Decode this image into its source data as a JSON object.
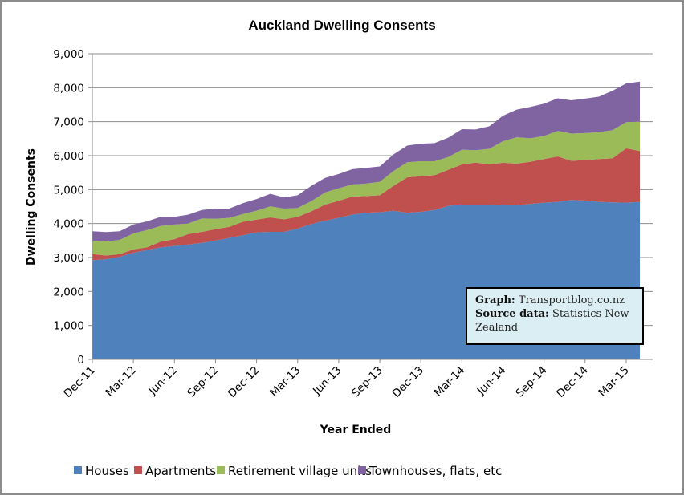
{
  "chart_data": {
    "type": "area",
    "stacked": true,
    "title": "Auckland Dwelling Consents",
    "xlabel": "Year Ended",
    "ylabel": "Dwelling Consents",
    "ylim": [
      0,
      9000
    ],
    "yticks": [
      0,
      1000,
      2000,
      3000,
      4000,
      5000,
      6000,
      7000,
      8000,
      9000
    ],
    "ytick_labels": [
      "0",
      "1,000",
      "2,000",
      "3,000",
      "4,000",
      "5,000",
      "6,000",
      "7,000",
      "8,000",
      "9,000"
    ],
    "xtick_labels": [
      "Dec-11",
      "Mar-12",
      "Jun-12",
      "Sep-12",
      "Dec-12",
      "Mar-13",
      "Jun-13",
      "Sep-13",
      "Dec-13",
      "Mar-14",
      "Jun-14",
      "Sep-14",
      "Dec-14",
      "Mar-15"
    ],
    "x": [
      "Dec-11",
      "Jan-12",
      "Feb-12",
      "Mar-12",
      "Apr-12",
      "May-12",
      "Jun-12",
      "Jul-12",
      "Aug-12",
      "Sep-12",
      "Oct-12",
      "Nov-12",
      "Dec-12",
      "Jan-13",
      "Feb-13",
      "Mar-13",
      "Apr-13",
      "May-13",
      "Jun-13",
      "Jul-13",
      "Aug-13",
      "Sep-13",
      "Oct-13",
      "Nov-13",
      "Dec-13",
      "Jan-14",
      "Feb-14",
      "Mar-14",
      "Apr-14",
      "May-14",
      "Jun-14",
      "Jul-14",
      "Aug-14",
      "Sep-14",
      "Oct-14",
      "Nov-14",
      "Dec-14",
      "Jan-15",
      "Feb-15",
      "Mar-15",
      "Apr-15"
    ],
    "grid": "horizontal",
    "legend_position": "bottom",
    "series": [
      {
        "name": "Houses",
        "color": "#4f81bd",
        "values": [
          2920,
          2950,
          3020,
          3140,
          3220,
          3300,
          3340,
          3380,
          3430,
          3500,
          3575,
          3655,
          3740,
          3755,
          3755,
          3850,
          3985,
          4085,
          4170,
          4265,
          4320,
          4335,
          4375,
          4320,
          4345,
          4400,
          4520,
          4560,
          4560,
          4560,
          4550,
          4535,
          4580,
          4615,
          4640,
          4695,
          4680,
          4640,
          4625,
          4615,
          4640
        ]
      },
      {
        "name": "Apartments",
        "color": "#c0504d",
        "values": [
          180,
          110,
          80,
          100,
          80,
          170,
          200,
          310,
          325,
          335,
          330,
          395,
          375,
          425,
          370,
          350,
          375,
          475,
          500,
          530,
          490,
          500,
          735,
          1040,
          1050,
          1025,
          1065,
          1180,
          1235,
          1180,
          1240,
          1230,
          1240,
          1285,
          1335,
          1150,
          1190,
          1260,
          1295,
          1600,
          1495
        ]
      },
      {
        "name": "Retirement village units",
        "color": "#9bbb59",
        "values": [
          400,
          410,
          420,
          470,
          510,
          460,
          430,
          310,
          395,
          305,
          260,
          230,
          265,
          325,
          315,
          260,
          300,
          355,
          370,
          355,
          365,
          395,
          435,
          445,
          440,
          410,
          375,
          435,
          365,
          460,
          635,
          775,
          690,
          680,
          750,
          805,
          795,
          790,
          830,
          770,
          865
        ]
      },
      {
        "name": "Townhouses, flats, etc",
        "color": "#8064a2",
        "values": [
          273,
          280,
          253,
          260,
          255,
          270,
          230,
          260,
          250,
          300,
          275,
          320,
          340,
          370,
          330,
          375,
          450,
          430,
          420,
          450,
          465,
          450,
          490,
          490,
          515,
          535,
          570,
          605,
          610,
          665,
          750,
          815,
          925,
          950,
          965,
          980,
          1015,
          1045,
          1160,
          1140,
          1180
        ]
      }
    ]
  },
  "annotation": {
    "graph_label": "Graph:",
    "graph_value": "Transportblog.co.nz",
    "source_label": "Source data:",
    "source_value": "Statistics New Zealand"
  }
}
